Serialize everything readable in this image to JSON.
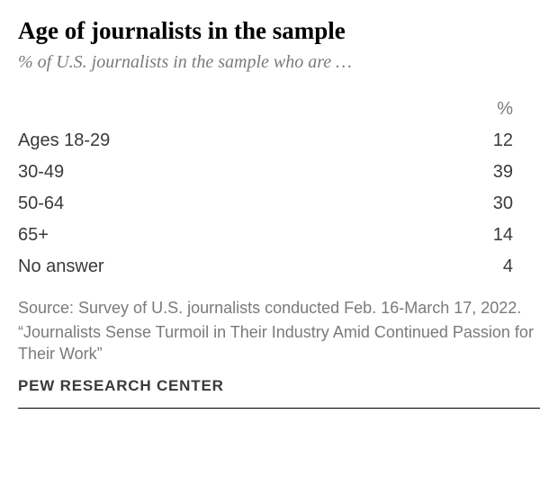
{
  "type": "table",
  "title": "Age of journalists in the sample",
  "subtitle": "% of U.S. journalists in the sample who are …",
  "table": {
    "header": {
      "label": "",
      "value": "%"
    },
    "rows": [
      {
        "label": "Ages 18-29",
        "value": 12
      },
      {
        "label": "30-49",
        "value": 39
      },
      {
        "label": "50-64",
        "value": 30
      },
      {
        "label": "65+",
        "value": 14
      },
      {
        "label": "No answer",
        "value": 4
      }
    ],
    "label_align": "left",
    "value_align": "right"
  },
  "source": {
    "line1": "Source: Survey of U.S. journalists conducted Feb. 16-March 17, 2022.",
    "line2": "“Journalists Sense Turmoil in Their Industry Amid Continued Passion for Their Work”"
  },
  "attribution": "PEW RESEARCH CENTER",
  "style": {
    "title_color": "#000000",
    "title_fontsize": 27,
    "subtitle_color": "#7a7a7a",
    "subtitle_fontsize": 20,
    "body_text_color": "#3a3a3a",
    "body_fontsize": 20,
    "source_color": "#7a7a7a",
    "source_fontsize": 18,
    "attribution_fontsize": 17,
    "background_color": "#ffffff",
    "bottom_rule_color": "#000000"
  }
}
